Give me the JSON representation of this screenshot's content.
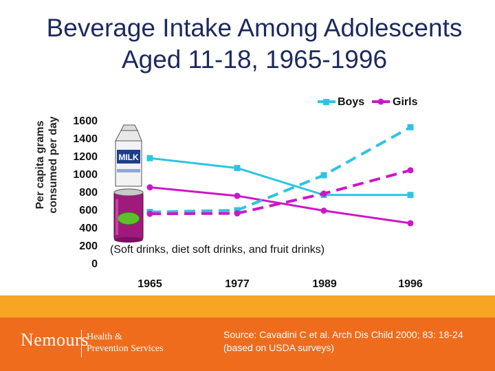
{
  "chart_data": {
    "type": "line",
    "title": [
      "Beverage Intake Among Adolescents",
      "Aged 11-18, 1965-1996"
    ],
    "ylabel": [
      "Per capita grams",
      "consumed per day"
    ],
    "yticks": [
      "1600",
      "1400",
      "1200",
      "1000",
      "800",
      "600",
      "400",
      "200",
      "0"
    ],
    "ylim": [
      0,
      1600
    ],
    "categories": [
      "1965",
      "1977",
      "1989",
      "1996"
    ],
    "legend": [
      "Boys",
      "Girls"
    ],
    "annotation": "(Soft drinks, diet soft drinks, and fruit drinks)",
    "series": [
      {
        "name": "Boys milk",
        "group": "Boys",
        "beverage": "milk",
        "style": "solid",
        "color": "#2ec4e0",
        "values": [
          1185,
          1075,
          775,
          775
        ]
      },
      {
        "name": "Girls milk",
        "group": "Girls",
        "beverage": "milk",
        "style": "solid",
        "color": "#cc17c6",
        "values": [
          860,
          765,
          600,
          460
        ]
      },
      {
        "name": "Boys soft drinks",
        "group": "Boys",
        "beverage": "soft drinks",
        "style": "dashed",
        "color": "#2ec4e0",
        "values": [
          585,
          605,
          995,
          1530
        ]
      },
      {
        "name": "Girls soft drinks",
        "group": "Girls",
        "beverage": "soft drinks",
        "style": "dashed",
        "color": "#cc17c6",
        "values": [
          565,
          570,
          790,
          1050
        ]
      }
    ]
  },
  "footer": {
    "logo_name": "Nemours",
    "logo_sub": [
      "Health &",
      "Prevention Services"
    ],
    "source": "Source:  Cavadini C et al.  Arch Dis Child 2000; 83: 18-24 (based on USDA surveys)"
  },
  "colors": {
    "boys": "#2ec4e0",
    "girls": "#cc17c6",
    "title": "#1c2a5e",
    "band_light": "#f6a623",
    "band_dark": "#ef6c1c"
  },
  "icons": [
    "milk-carton-icon",
    "soda-can-icon"
  ]
}
